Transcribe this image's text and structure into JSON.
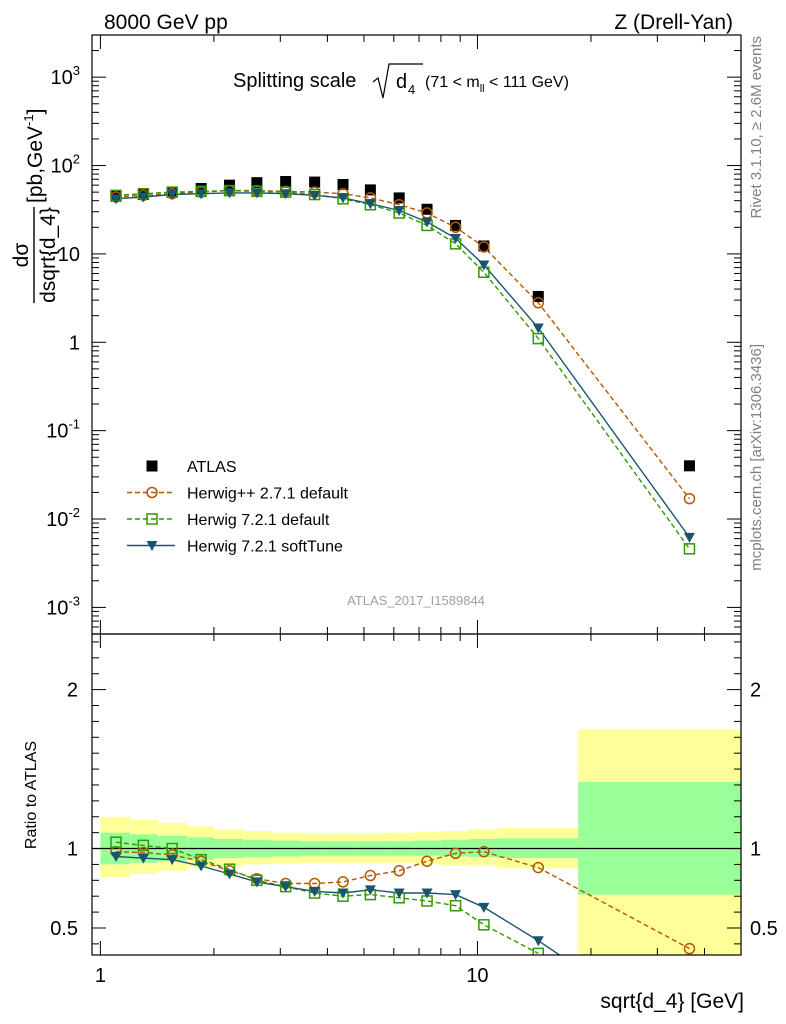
{
  "header": {
    "left": "8000 GeV pp",
    "right": "Z (Drell-Yan)"
  },
  "side_labels": {
    "rivet": "Rivet 3.1.10, ≥ 2.6M events",
    "mcplots": "mcplots.cern.ch [arXiv:1306.3436]"
  },
  "chart_data": [
    {
      "type": "scatter",
      "panel": "main",
      "title": {
        "main": "Splitting scale",
        "sqrt_arg": "d",
        "sqrt_sub": "4",
        "range_pre": "(71 < m",
        "range_sub": "ll",
        "range_post": " < 111 GeV)"
      },
      "ylabel": {
        "num": "dσ",
        "den": "dsqrt{d_4}",
        "units": "[pb,GeV",
        "units_sup": "-1",
        "units_close": "]"
      },
      "x_scale": "log",
      "y_scale": "log",
      "xlim": [
        0.95,
        50
      ],
      "ylim": [
        0.0005,
        3000
      ],
      "yticks": [
        {
          "value": 0.001,
          "base": "10",
          "exp": "-3"
        },
        {
          "value": 0.01,
          "base": "10",
          "exp": "-2"
        },
        {
          "value": 0.1,
          "base": "10",
          "exp": "-1"
        },
        {
          "value": 1,
          "base": "1",
          "exp": ""
        },
        {
          "value": 10,
          "base": "10",
          "exp": ""
        },
        {
          "value": 100,
          "base": "10",
          "exp": "2"
        },
        {
          "value": 1000,
          "base": "10",
          "exp": "3"
        }
      ],
      "watermark": "ATLAS_2017_I1589844",
      "legend_position": "bottom-left",
      "series": [
        {
          "name": "ATLAS",
          "color": "#000000",
          "marker": "filled-square",
          "line": "none",
          "x": [
            1.1,
            1.3,
            1.55,
            1.85,
            2.2,
            2.6,
            3.1,
            3.7,
            4.4,
            5.2,
            6.2,
            7.35,
            8.75,
            10.4,
            14.5,
            36.5
          ],
          "y": [
            45,
            47,
            50,
            55,
            60,
            64,
            66,
            65,
            61,
            53,
            43,
            32,
            21,
            12.3,
            3.3,
            0.04
          ]
        },
        {
          "name": "Herwig++ 2.7.1 default",
          "color": "#b35900",
          "marker": "open-circle",
          "line": "dashed",
          "x": [
            1.1,
            1.3,
            1.55,
            1.85,
            2.2,
            2.6,
            3.1,
            3.7,
            4.4,
            5.2,
            6.2,
            7.35,
            8.75,
            10.4,
            14.5,
            36.5
          ],
          "y": [
            44,
            46,
            48,
            50,
            52,
            52,
            51,
            50,
            48,
            43,
            36,
            29,
            20,
            12,
            2.8,
            0.017
          ]
        },
        {
          "name": "Herwig 7.2.1 default",
          "color": "#339900",
          "marker": "open-square",
          "line": "dashed",
          "x": [
            1.1,
            1.3,
            1.55,
            1.85,
            2.2,
            2.6,
            3.1,
            3.7,
            4.4,
            5.2,
            6.2,
            7.35,
            8.75,
            10.4,
            14.5,
            36.5
          ],
          "y": [
            46,
            48,
            50,
            51,
            52,
            51,
            50,
            47,
            42,
            36,
            29,
            21,
            13,
            6.2,
            1.1,
            0.0046
          ]
        },
        {
          "name": "Herwig 7.2.1 softTune",
          "color": "#1a5570",
          "marker": "filled-triangle-down",
          "line": "solid",
          "x": [
            1.1,
            1.3,
            1.55,
            1.85,
            2.2,
            2.6,
            3.1,
            3.7,
            4.4,
            5.2,
            6.2,
            7.35,
            8.75,
            10.4,
            14.5,
            36.5
          ],
          "y": [
            42,
            44,
            47,
            48,
            49,
            49,
            48,
            46,
            43,
            37,
            31,
            23,
            15,
            7.5,
            1.45,
            0.0062
          ]
        }
      ]
    },
    {
      "type": "scatter",
      "panel": "ratio",
      "ylabel": "Ratio to ATLAS",
      "xlabel": "sqrt{d_4} [GeV]",
      "x_scale": "log",
      "xlim": [
        0.95,
        50
      ],
      "ylim": [
        0.33,
        2.35
      ],
      "reference_line": 1,
      "xticks": [
        {
          "value": 1,
          "label": "1"
        },
        {
          "value": 10,
          "label": "10"
        }
      ],
      "yticks": [
        {
          "value": 0.5,
          "label": "0.5"
        },
        {
          "value": 1,
          "label": "1"
        },
        {
          "value": 2,
          "label": "2"
        }
      ],
      "bands": {
        "stat_color": "#99ff99",
        "total_color": "#ffff99",
        "bins": [
          {
            "lo": 1.0,
            "hi": 1.2,
            "stat": [
              0.9,
              1.1
            ],
            "total": [
              0.82,
              1.2
            ]
          },
          {
            "lo": 1.2,
            "hi": 1.42,
            "stat": [
              0.91,
              1.09
            ],
            "total": [
              0.84,
              1.18
            ]
          },
          {
            "lo": 1.42,
            "hi": 1.7,
            "stat": [
              0.92,
              1.08
            ],
            "total": [
              0.86,
              1.16
            ]
          },
          {
            "lo": 1.7,
            "hi": 2.0,
            "stat": [
              0.93,
              1.07
            ],
            "total": [
              0.88,
              1.14
            ]
          },
          {
            "lo": 2.0,
            "hi": 2.4,
            "stat": [
              0.94,
              1.06
            ],
            "total": [
              0.89,
              1.12
            ]
          },
          {
            "lo": 2.4,
            "hi": 2.85,
            "stat": [
              0.945,
              1.055
            ],
            "total": [
              0.9,
              1.11
            ]
          },
          {
            "lo": 2.85,
            "hi": 3.4,
            "stat": [
              0.95,
              1.05
            ],
            "total": [
              0.905,
              1.1
            ]
          },
          {
            "lo": 3.4,
            "hi": 4.0,
            "stat": [
              0.955,
              1.045
            ],
            "total": [
              0.91,
              1.095
            ]
          },
          {
            "lo": 4.0,
            "hi": 4.8,
            "stat": [
              0.955,
              1.045
            ],
            "total": [
              0.91,
              1.095
            ]
          },
          {
            "lo": 4.8,
            "hi": 5.7,
            "stat": [
              0.955,
              1.045
            ],
            "total": [
              0.91,
              1.095
            ]
          },
          {
            "lo": 5.7,
            "hi": 6.8,
            "stat": [
              0.955,
              1.045
            ],
            "total": [
              0.91,
              1.1
            ]
          },
          {
            "lo": 6.8,
            "hi": 8.0,
            "stat": [
              0.955,
              1.05
            ],
            "total": [
              0.9,
              1.105
            ]
          },
          {
            "lo": 8.0,
            "hi": 9.5,
            "stat": [
              0.95,
              1.055
            ],
            "total": [
              0.895,
              1.11
            ]
          },
          {
            "lo": 9.5,
            "hi": 11.3,
            "stat": [
              0.945,
              1.06
            ],
            "total": [
              0.89,
              1.12
            ]
          },
          {
            "lo": 11.3,
            "hi": 18.5,
            "stat": [
              0.94,
              1.065
            ],
            "total": [
              0.875,
              1.13
            ]
          },
          {
            "lo": 18.5,
            "hi": 50,
            "stat": [
              0.71,
              1.42
            ],
            "total": [
              0.3,
              1.75
            ]
          }
        ]
      },
      "series": [
        {
          "name": "Herwig++ 2.7.1 default",
          "x": [
            1.1,
            1.3,
            1.55,
            1.85,
            2.2,
            2.6,
            3.1,
            3.7,
            4.4,
            5.2,
            6.2,
            7.35,
            8.75,
            10.4,
            14.5,
            36.5
          ],
          "y": [
            0.98,
            0.975,
            0.96,
            0.92,
            0.86,
            0.81,
            0.78,
            0.78,
            0.79,
            0.83,
            0.86,
            0.92,
            0.97,
            0.98,
            0.88,
            0.37
          ]
        },
        {
          "name": "Herwig 7.2.1 default",
          "x": [
            1.1,
            1.3,
            1.55,
            1.85,
            2.2,
            2.6,
            3.1,
            3.7,
            4.4,
            5.2,
            6.2,
            7.35,
            8.75,
            10.4,
            14.5
          ],
          "y": [
            1.04,
            1.02,
            1.0,
            0.93,
            0.87,
            0.8,
            0.76,
            0.72,
            0.7,
            0.71,
            0.69,
            0.67,
            0.64,
            0.52,
            0.34
          ]
        },
        {
          "name": "Herwig 7.2.1 softTune",
          "x": [
            1.1,
            1.3,
            1.55,
            1.85,
            2.2,
            2.6,
            3.1,
            3.7,
            4.4,
            5.2,
            6.2,
            7.35,
            8.75,
            10.4,
            14.5,
            16.5
          ],
          "y": [
            0.95,
            0.94,
            0.93,
            0.89,
            0.84,
            0.79,
            0.76,
            0.73,
            0.72,
            0.74,
            0.72,
            0.72,
            0.71,
            0.63,
            0.42,
            0.33
          ]
        }
      ]
    }
  ]
}
